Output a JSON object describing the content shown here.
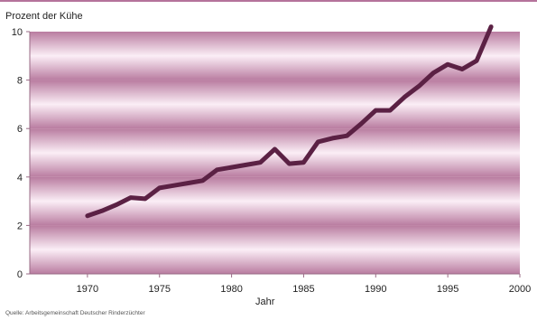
{
  "chart_data": {
    "type": "line",
    "title": "",
    "ylabel": "Prozent der Kühe",
    "xlabel": "Jahr",
    "xlim": [
      1966,
      2000
    ],
    "ylim": [
      0,
      10
    ],
    "x_ticks": [
      1970,
      1975,
      1980,
      1985,
      1990,
      1995,
      2000
    ],
    "y_ticks": [
      0,
      2,
      4,
      6,
      8,
      10
    ],
    "grid": false,
    "legend": "none",
    "source": "Quelle: Arbeitsgemeinschaft Deutscher Rinderzüchter",
    "colors": {
      "line": "#5b2144",
      "band_edge": "#b97ca0",
      "band_center": "#fbeef6",
      "top_rule": "#b5739b",
      "axis": "#9a6b86"
    },
    "series": [
      {
        "x": [
          1970,
          1971,
          1972,
          1973,
          1974,
          1975,
          1976,
          1977,
          1978,
          1979,
          1980,
          1981,
          1982,
          1983,
          1984,
          1985,
          1986,
          1987,
          1988,
          1989,
          1990,
          1991,
          1992,
          1993,
          1994,
          1995,
          1996,
          1997,
          1998
        ],
        "values": [
          2.4,
          2.6,
          2.85,
          3.15,
          3.1,
          3.55,
          3.65,
          3.75,
          3.85,
          4.3,
          4.4,
          4.5,
          4.6,
          5.15,
          4.55,
          4.6,
          5.45,
          5.6,
          5.7,
          6.2,
          6.75,
          6.75,
          7.3,
          7.75,
          8.3,
          8.65,
          8.45,
          8.8,
          10.2
        ]
      }
    ]
  }
}
